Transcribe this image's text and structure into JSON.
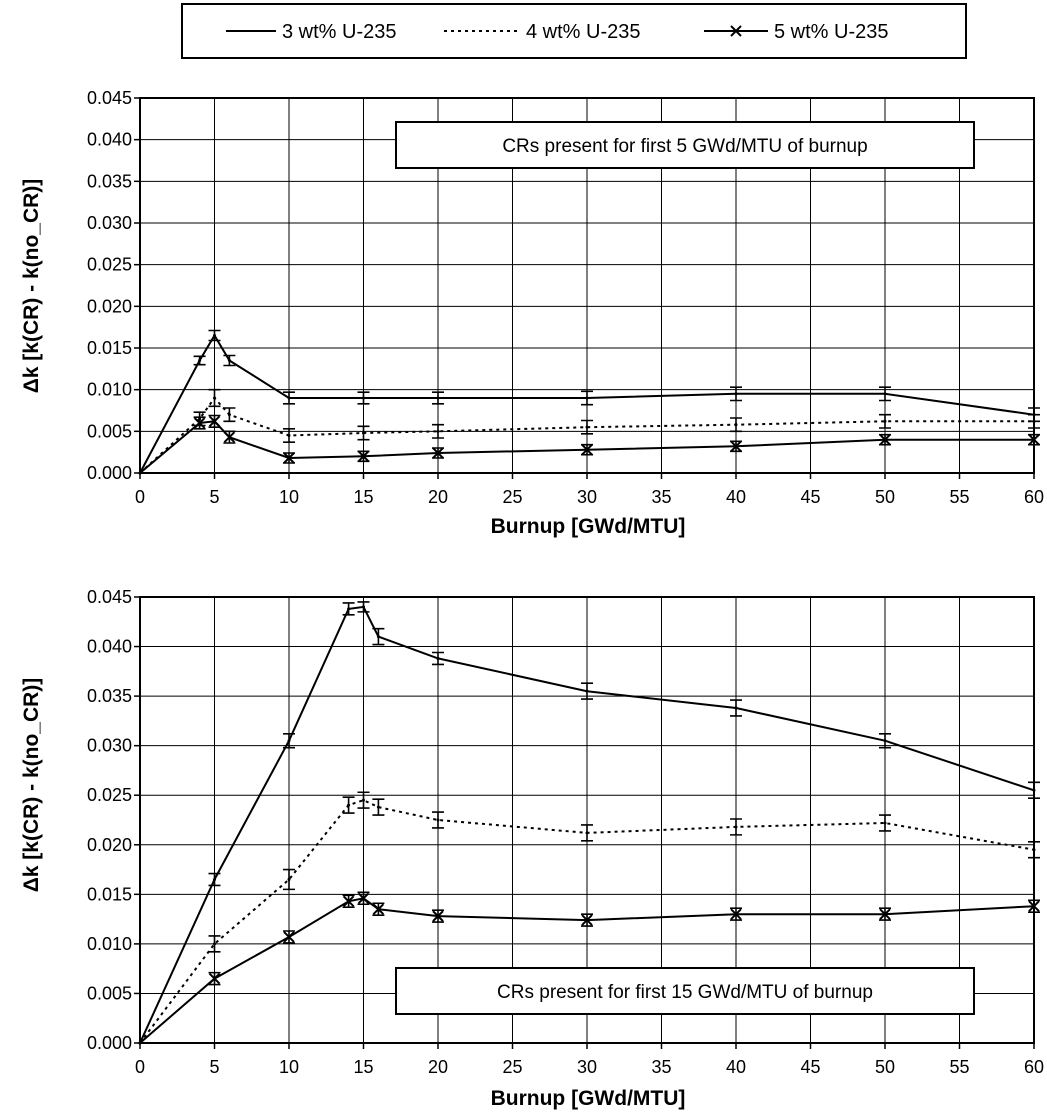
{
  "legend": {
    "placement": "top-center",
    "entries": [
      {
        "label": "3 wt% U-235",
        "style": "solid"
      },
      {
        "label": "4 wt% U-235",
        "style": "dotted"
      },
      {
        "label": "5 wt% U-235",
        "style": "solid-x"
      }
    ]
  },
  "chart_data": [
    {
      "type": "line",
      "xlabel": "Burnup [GWd/MTU]",
      "ylabel": "Δk [k(CR) - k(no_CR)]",
      "xlim": [
        0,
        60
      ],
      "ylim": [
        0,
        0.045
      ],
      "xticks": [
        "0",
        "5",
        "10",
        "15",
        "20",
        "25",
        "30",
        "35",
        "40",
        "45",
        "50",
        "55",
        "60"
      ],
      "yticks": [
        "0.000",
        "0.005",
        "0.010",
        "0.015",
        "0.020",
        "0.025",
        "0.030",
        "0.035",
        "0.040",
        "0.045"
      ],
      "grid": true,
      "annotation": "CRs present for first 5 GWd/MTU of burnup",
      "series": [
        {
          "name": "3 wt% U-235",
          "x": [
            0,
            4,
            5,
            6,
            10,
            15,
            20,
            30,
            40,
            50,
            60
          ],
          "y": [
            0,
            0.0135,
            0.0165,
            0.0135,
            0.009,
            0.009,
            0.009,
            0.009,
            0.0095,
            0.0095,
            0.007
          ],
          "err": [
            0,
            0.0005,
            0.0006,
            0.0006,
            0.0007,
            0.0007,
            0.0007,
            0.0008,
            0.0008,
            0.0008,
            0.0008
          ]
        },
        {
          "name": "4 wt% U-235",
          "x": [
            0,
            4,
            5,
            6,
            10,
            15,
            20,
            30,
            40,
            50,
            60
          ],
          "y": [
            0,
            0.0065,
            0.009,
            0.007,
            0.0045,
            0.0048,
            0.005,
            0.0055,
            0.0058,
            0.0062,
            0.0062
          ],
          "err": [
            0,
            0.0008,
            0.001,
            0.0008,
            0.0008,
            0.0008,
            0.0008,
            0.0008,
            0.0008,
            0.0008,
            0.0008
          ]
        },
        {
          "name": "5 wt% U-235",
          "x": [
            0,
            4,
            5,
            6,
            10,
            15,
            20,
            30,
            40,
            50,
            60
          ],
          "y": [
            0,
            0.006,
            0.0062,
            0.0043,
            0.0018,
            0.002,
            0.0024,
            0.0028,
            0.0032,
            0.004,
            0.004
          ],
          "err": [
            0,
            0.0007,
            0.0007,
            0.0007,
            0.0006,
            0.0006,
            0.0006,
            0.0006,
            0.0006,
            0.0006,
            0.0006
          ]
        }
      ]
    },
    {
      "type": "line",
      "xlabel": "Burnup [GWd/MTU]",
      "ylabel": "Δk [k(CR) - k(no_CR)]",
      "xlim": [
        0,
        60
      ],
      "ylim": [
        0,
        0.045
      ],
      "xticks": [
        "0",
        "5",
        "10",
        "15",
        "20",
        "25",
        "30",
        "35",
        "40",
        "45",
        "50",
        "55",
        "60"
      ],
      "yticks": [
        "0.000",
        "0.005",
        "0.010",
        "0.015",
        "0.020",
        "0.025",
        "0.030",
        "0.035",
        "0.040",
        "0.045"
      ],
      "grid": true,
      "annotation": "CRs present for first 15 GWd/MTU of burnup",
      "series": [
        {
          "name": "3 wt% U-235",
          "x": [
            0,
            5,
            10,
            14,
            15,
            16,
            20,
            30,
            40,
            50,
            60
          ],
          "y": [
            0,
            0.0165,
            0.0305,
            0.0438,
            0.044,
            0.041,
            0.0388,
            0.0355,
            0.0338,
            0.0305,
            0.0255
          ],
          "err": [
            0,
            0.0006,
            0.0007,
            0.0006,
            0.0005,
            0.0008,
            0.0006,
            0.0008,
            0.0008,
            0.0007,
            0.0008
          ]
        },
        {
          "name": "4 wt% U-235",
          "x": [
            0,
            5,
            10,
            14,
            15,
            16,
            20,
            30,
            40,
            50,
            60
          ],
          "y": [
            0,
            0.01,
            0.0165,
            0.024,
            0.0245,
            0.0238,
            0.0225,
            0.0212,
            0.0218,
            0.0222,
            0.0195
          ],
          "err": [
            0,
            0.0008,
            0.001,
            0.0008,
            0.0008,
            0.0008,
            0.0008,
            0.0008,
            0.0008,
            0.0008,
            0.0008
          ]
        },
        {
          "name": "5 wt% U-235",
          "x": [
            0,
            5,
            10,
            14,
            15,
            16,
            20,
            30,
            40,
            50,
            60
          ],
          "y": [
            0,
            0.0065,
            0.0107,
            0.0143,
            0.0146,
            0.0135,
            0.0128,
            0.0124,
            0.013,
            0.013,
            0.0138
          ],
          "err": [
            0,
            0.0006,
            0.0006,
            0.0006,
            0.0006,
            0.0006,
            0.0006,
            0.0006,
            0.0006,
            0.0006,
            0.0006
          ]
        }
      ]
    }
  ]
}
